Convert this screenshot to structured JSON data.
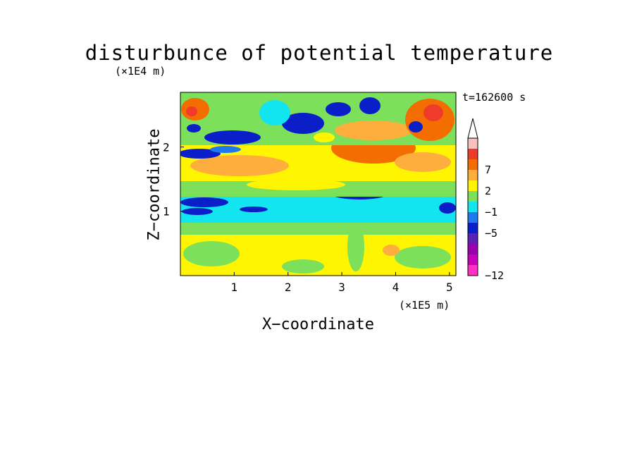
{
  "chart_data": {
    "type": "heatmap",
    "title": "disturbunce of potential temperature",
    "time_label": "t=162600 s",
    "xlabel": "X−coordinate",
    "ylabel": "Z−coordinate",
    "x_unit": "(×1E5 m)",
    "y_unit": "(×1E4 m)",
    "xlim": [
      0,
      5.12
    ],
    "ylim": [
      0,
      2.85
    ],
    "x_ticks": [
      "1",
      "2",
      "3",
      "4",
      "5"
    ],
    "y_ticks": [
      "1",
      "2"
    ],
    "colorbar": {
      "labels": [
        "7",
        "2",
        "−1",
        "−5",
        "−12"
      ],
      "colors": [
        "#f9c0c0",
        "#ef3b2c",
        "#f46d00",
        "#fdae3d",
        "#fff500",
        "#7de05a",
        "#12e5f0",
        "#1e78f0",
        "#0a1fc8",
        "#5a20b8",
        "#9a00b0",
        "#c800b8",
        "#ff30c8"
      ]
    },
    "bands": [
      {
        "z_range": [
          0,
          0.65
        ],
        "dominant": "yellow-green"
      },
      {
        "z_range": [
          0.65,
          0.95
        ],
        "dominant": "light-green/cyan"
      },
      {
        "z_range": [
          0.95,
          1.35
        ],
        "dominant": "cyan with dark blue patches"
      },
      {
        "z_range": [
          1.35,
          1.7
        ],
        "dominant": "green/yellow"
      },
      {
        "z_range": [
          1.7,
          2.3
        ],
        "dominant": "orange/yellow, dark blue left"
      },
      {
        "z_range": [
          2.3,
          2.85
        ],
        "dominant": "mixed green/blue/orange"
      }
    ]
  }
}
